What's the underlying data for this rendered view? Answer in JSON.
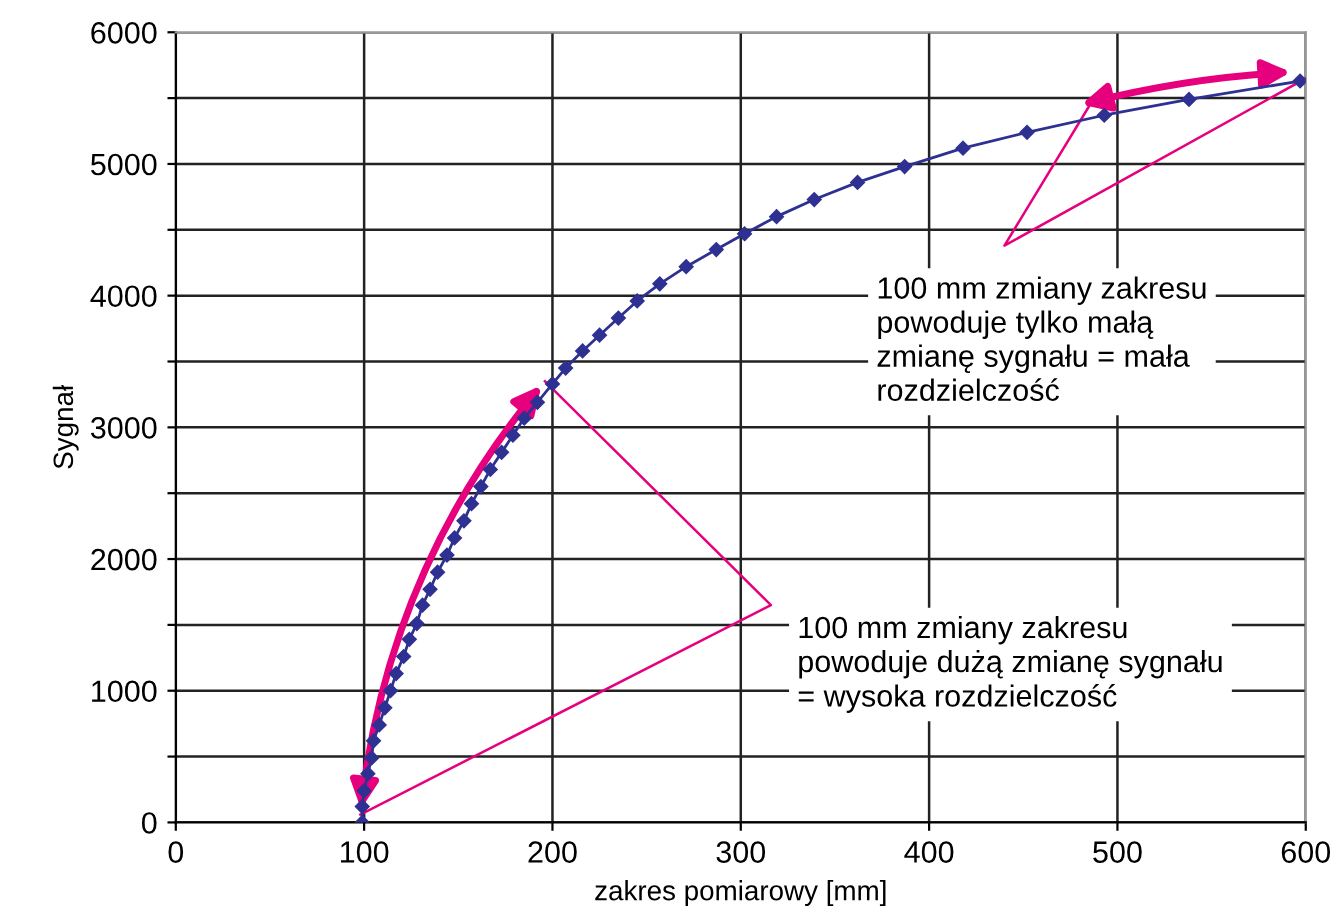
{
  "chart_data": {
    "type": "line",
    "xlabel": "zakres pomiarowy [mm]",
    "ylabel": "Sygnał",
    "x": [
      99,
      99,
      100,
      102,
      104,
      105,
      108,
      111,
      114,
      117,
      121,
      124,
      128,
      131,
      135,
      139,
      144,
      148,
      153,
      157,
      162,
      167,
      173,
      179,
      185,
      192,
      200,
      207,
      216,
      225,
      235,
      245,
      257,
      271,
      287,
      302,
      319,
      339,
      362,
      387,
      418,
      452,
      493,
      538,
      597
    ],
    "series": [
      {
        "color": "#2e3192",
        "values": [
          0,
          120,
          240,
          370,
          490,
          620,
          740,
          870,
          1000,
          1130,
          1260,
          1390,
          1510,
          1650,
          1770,
          1900,
          2030,
          2160,
          2290,
          2420,
          2550,
          2680,
          2810,
          2940,
          3070,
          3190,
          3330,
          3450,
          3580,
          3700,
          3830,
          3960,
          4090,
          4220,
          4350,
          4470,
          4600,
          4730,
          4860,
          4980,
          5120,
          5240,
          5370,
          5490,
          5630
        ]
      }
    ],
    "marker": "diamond",
    "line_style": "solid",
    "grid": true,
    "legend": false,
    "xlim": [
      0,
      600
    ],
    "xticks": [
      0,
      100,
      200,
      300,
      400,
      500,
      600
    ],
    "ylim": [
      0,
      6000
    ],
    "yticks": [
      0,
      {
        "value": 500,
        "label": null
      },
      1000,
      {
        "value": 1500,
        "label": null
      },
      2000,
      {
        "value": 2500,
        "label": null
      },
      3000,
      {
        "value": 3500,
        "label": null
      },
      4000,
      {
        "value": 4500,
        "label": null
      },
      5000,
      {
        "value": 5500,
        "label": null
      },
      6000
    ],
    "annotations": [
      "100 mm zmiany zakresu\npowoduje tylko małą\nzmianę sygnału = mała\nrozdzielczość",
      "100 mm zmiany zakresu\npowoduje dużą zmianę sygnału\n= wysoka rozdzielczość"
    ]
  }
}
